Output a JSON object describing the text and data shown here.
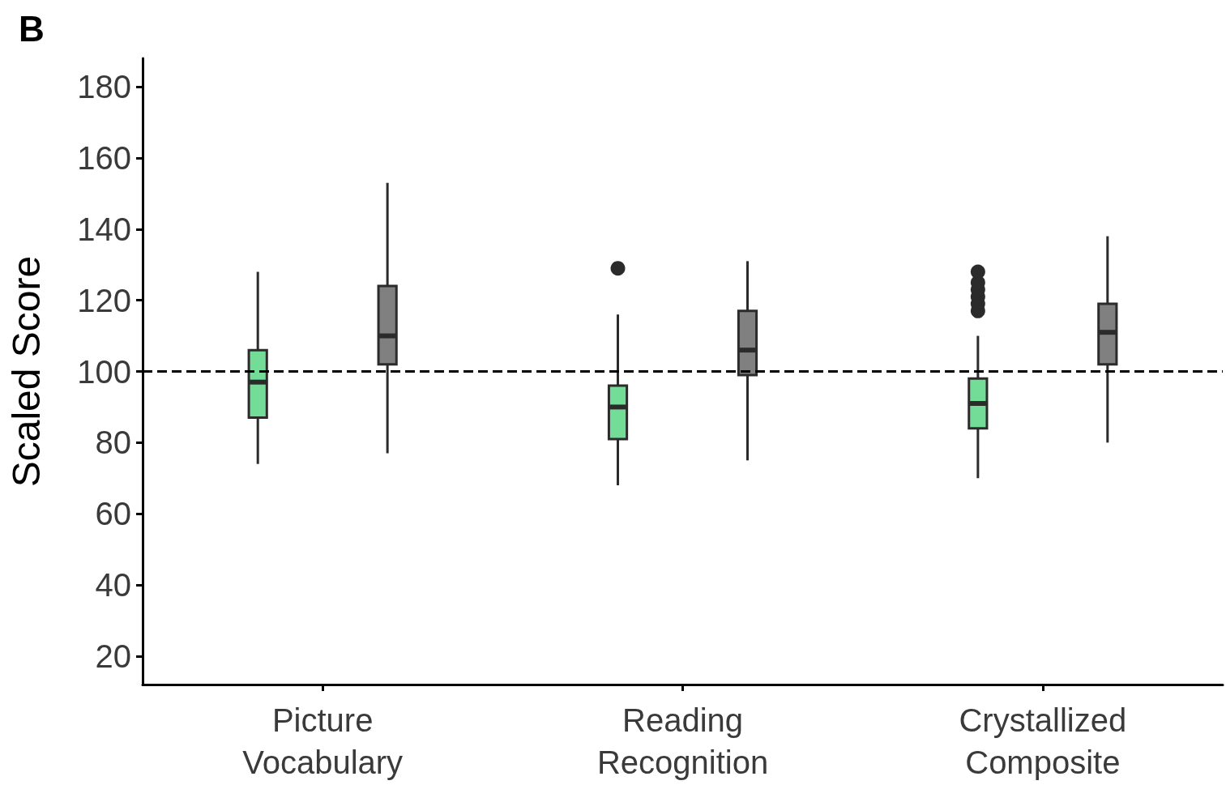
{
  "chart_data": {
    "type": "box",
    "title": "B",
    "ylabel": "Scaled Score",
    "categories": [
      "Picture\nVocabulary",
      "Reading\nRecognition",
      "Crystallized\nComposite"
    ],
    "series": [
      {
        "color": "#73dd98",
        "boxes": [
          {
            "low": 74,
            "q1": 87,
            "median": 97,
            "q3": 106,
            "high": 128
          },
          {
            "low": 68,
            "q1": 81,
            "median": 90,
            "q3": 96,
            "high": 116,
            "outliers": [
              129
            ]
          },
          {
            "low": 70,
            "q1": 84,
            "median": 91,
            "q3": 98,
            "high": 110,
            "outliers": [
              117,
              119,
              121,
              123,
              125,
              128
            ]
          }
        ]
      },
      {
        "color": "#808080",
        "boxes": [
          {
            "low": 77,
            "q1": 102,
            "median": 110,
            "q3": 124,
            "high": 153
          },
          {
            "low": 75,
            "q1": 99,
            "median": 106,
            "q3": 117,
            "high": 131
          },
          {
            "low": 80,
            "q1": 102,
            "median": 111,
            "q3": 119,
            "high": 138
          }
        ]
      }
    ],
    "ylim": [
      12,
      188
    ],
    "yticks": [
      20,
      40,
      60,
      80,
      100,
      120,
      140,
      160,
      180
    ],
    "ref_lines": [
      {
        "axis": "y",
        "value": 100,
        "line_style": "dashed",
        "color": "#000000"
      }
    ],
    "grid": false
  }
}
